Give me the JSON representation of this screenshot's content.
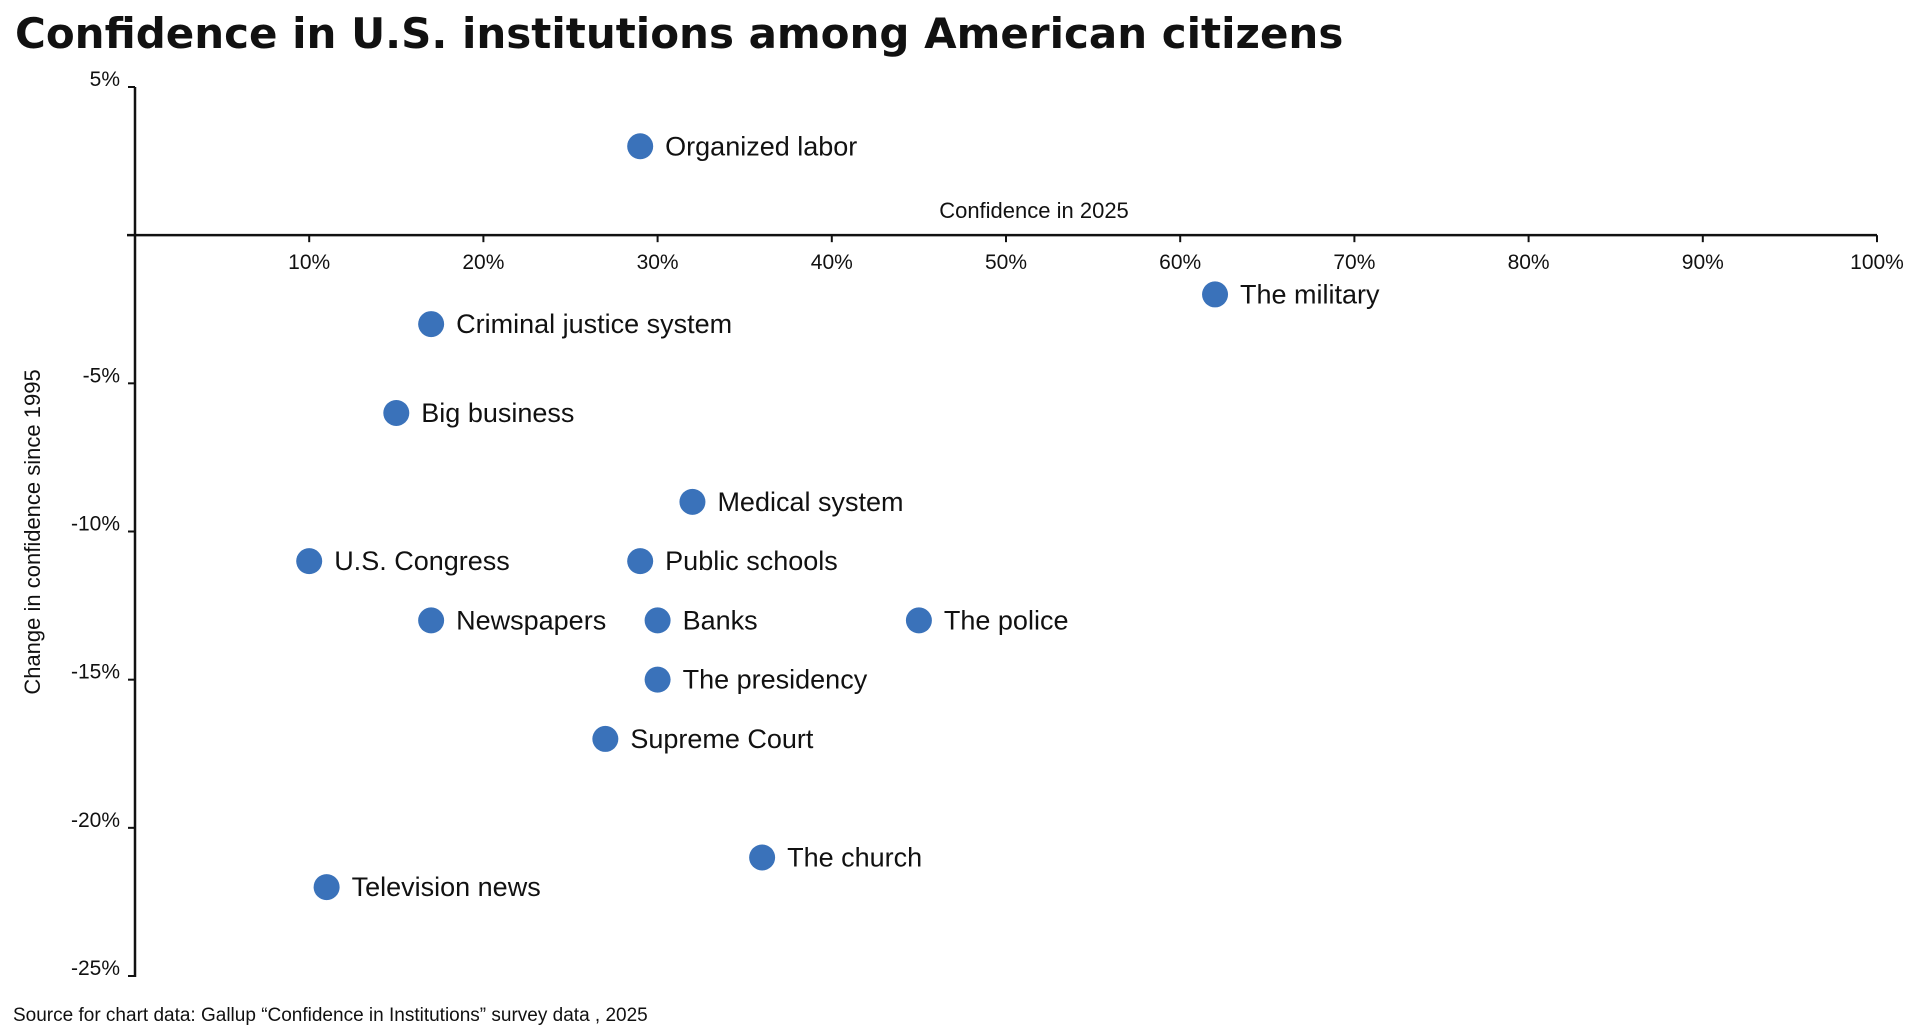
{
  "chart_data": {
    "type": "scatter",
    "title": "Confidence in U.S. institutions among American citizens",
    "xlabel": "Confidence in 2025",
    "ylabel": "Change in confidence since 1995",
    "xlim": [
      0,
      100
    ],
    "ylim": [
      -25,
      5
    ],
    "x_ticks": [
      "10%",
      "20%",
      "30%",
      "40%",
      "50%",
      "60%",
      "70%",
      "80%",
      "90%",
      "100%"
    ],
    "y_ticks": [
      "5%",
      "-5%",
      "-10%",
      "-15%",
      "-20%",
      "-25%"
    ],
    "grid": false,
    "legend": "none",
    "marker_color": "#3A72BA",
    "points": [
      {
        "label": "Organized labor",
        "x": 29,
        "y": 3
      },
      {
        "label": "The military",
        "x": 62,
        "y": -2
      },
      {
        "label": "Criminal justice system",
        "x": 17,
        "y": -3
      },
      {
        "label": "Big business",
        "x": 15,
        "y": -6
      },
      {
        "label": "Medical system",
        "x": 32,
        "y": -9
      },
      {
        "label": "U.S. Congress",
        "x": 10,
        "y": -11
      },
      {
        "label": "Public schools",
        "x": 29,
        "y": -11
      },
      {
        "label": "Newspapers",
        "x": 17,
        "y": -13
      },
      {
        "label": "Banks",
        "x": 30,
        "y": -13
      },
      {
        "label": "The police",
        "x": 45,
        "y": -13
      },
      {
        "label": "The presidency",
        "x": 30,
        "y": -15
      },
      {
        "label": "Supreme Court",
        "x": 27,
        "y": -17
      },
      {
        "label": "The church",
        "x": 36,
        "y": -21
      },
      {
        "label": "Television news",
        "x": 11,
        "y": -22
      }
    ]
  },
  "source": "Source for chart data: Gallup “Confidence in Institutions” survey data , 2025"
}
